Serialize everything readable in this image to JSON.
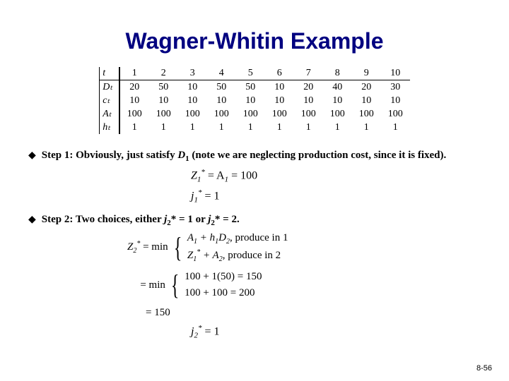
{
  "slide": {
    "title": "Wagner-Whitin Example",
    "page_number": "8-56"
  },
  "table": {
    "header_label": "t",
    "rows": [
      {
        "label": "Dₜ",
        "values": [
          "20",
          "50",
          "10",
          "50",
          "50",
          "10",
          "20",
          "40",
          "20",
          "30"
        ]
      },
      {
        "label": "cₜ",
        "values": [
          "10",
          "10",
          "10",
          "10",
          "10",
          "10",
          "10",
          "10",
          "10",
          "10"
        ]
      },
      {
        "label": "Aₜ",
        "values": [
          "100",
          "100",
          "100",
          "100",
          "100",
          "100",
          "100",
          "100",
          "100",
          "100"
        ]
      },
      {
        "label": "hₜ",
        "values": [
          "1",
          "1",
          "1",
          "1",
          "1",
          "1",
          "1",
          "1",
          "1",
          "1"
        ]
      }
    ],
    "periods": [
      "1",
      "2",
      "3",
      "4",
      "5",
      "6",
      "7",
      "8",
      "9",
      "10"
    ]
  },
  "step1": {
    "text_a": "Step 1: Obviously, just satisfy ",
    "d1": "D",
    "d1_sub": "1",
    "text_b": " (note we are neglecting production cost, since it is fixed).",
    "eq_z": "Z",
    "eq_z_sub": "1",
    "eq_z_sup": "*",
    "eq_z_rhs": " = A",
    "eq_z_rhs_sub": "1",
    "eq_z_val": " = 100",
    "eq_j": "j",
    "eq_j_sub": "1",
    "eq_j_sup": "*",
    "eq_j_val": " = 1"
  },
  "step2": {
    "text_a": "Step 2: Two choices, either ",
    "j2a": "j",
    "j2a_sub": "2",
    "j2a_sup": "*",
    "text_b": " = 1 or ",
    "j2b": "j",
    "j2b_sub": "2",
    "j2b_sup": "*",
    "text_c": " = 2.",
    "lhs": "Z",
    "lhs_sub": "2",
    "lhs_sup": "*",
    "min": " = min",
    "case1_a": "A",
    "case1_a_sub": "1",
    "case1_plus": " + h",
    "case1_h_sub": "1",
    "case1_d": "D",
    "case1_d_sub": "2",
    "case1_txt": ", produce in 1",
    "case2_z": "Z",
    "case2_z_sub": "1",
    "case2_z_sup": "*",
    "case2_plus": " + A",
    "case2_a_sub": "2",
    "case2_txt": ", produce in 2",
    "num_case1": "100 + 1(50) = 150",
    "num_case2": "100 + 100 = 200",
    "result": "= 150",
    "j2_final": "j",
    "j2_final_sub": "2",
    "j2_final_sup": "*",
    "j2_final_val": " = 1"
  }
}
